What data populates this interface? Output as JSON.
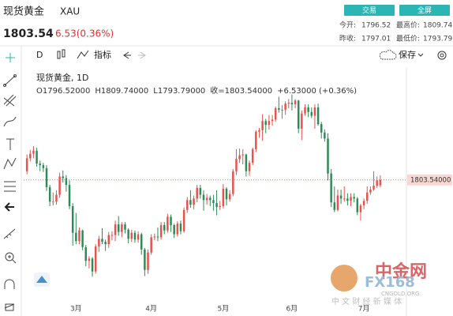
{
  "header": {
    "title": "现货黄金",
    "symbol": "XAU",
    "price": 1803.54,
    "change": "6.53(0.36%)",
    "buttons": [
      "交易",
      "全屏"
    ],
    "stats": [
      {
        "label": "今开:",
        "value": 1796.52
      },
      {
        "label": "最高价:",
        "value": 1809.74
      },
      {
        "label": "昨收:",
        "value": 1797.01
      },
      {
        "label": "最低价:",
        "value": 1793.79
      }
    ]
  },
  "toolbar": {
    "interval": "D",
    "indicators": "指标",
    "save": "保存"
  },
  "watermark": {
    "brand": "中金网",
    "logo": "FX168",
    "site": "CNGOLD.ORG",
    "slogan": "中 文 财 经 新 媒 体"
  },
  "chart_data": {
    "type": "candlestick",
    "legend_title": "现货黄金, 1D",
    "legend_values": [
      "O1796.52000",
      "H1809.74000",
      "L1793.79000",
      "收=1803.54000",
      "+6.53000 (+0.36%)"
    ],
    "up_color": "#e5534b",
    "down_color": "#2e8b57",
    "ylim": [
      1640,
      1952
    ],
    "price_line": {
      "value": 1803.54,
      "label": "1803.54000"
    },
    "xlim": [
      -1,
      116
    ],
    "xticks": [
      {
        "value": 15,
        "label": "3月"
      },
      {
        "value": 38,
        "label": "4月"
      },
      {
        "value": 60,
        "label": "5月"
      },
      {
        "value": 81,
        "label": "6月"
      },
      {
        "value": 103,
        "label": "7月"
      }
    ],
    "candles": [
      [
        1815,
        1837,
        1811,
        1832
      ],
      [
        1832,
        1843,
        1828,
        1838
      ],
      [
        1838,
        1848,
        1832,
        1842
      ],
      [
        1842,
        1846,
        1821,
        1825
      ],
      [
        1825,
        1829,
        1815,
        1823
      ],
      [
        1823,
        1826,
        1814,
        1819
      ],
      [
        1819,
        1823,
        1789,
        1794
      ],
      [
        1794,
        1797,
        1769,
        1775
      ],
      [
        1775,
        1787,
        1770,
        1775
      ],
      [
        1775,
        1790,
        1771,
        1784
      ],
      [
        1784,
        1813,
        1780,
        1808
      ],
      [
        1808,
        1816,
        1800,
        1806
      ],
      [
        1806,
        1810,
        1788,
        1797
      ],
      [
        1797,
        1803,
        1765,
        1769
      ],
      [
        1769,
        1773,
        1717,
        1734
      ],
      [
        1734,
        1760,
        1719,
        1723
      ],
      [
        1723,
        1741,
        1719,
        1737
      ],
      [
        1737,
        1738,
        1711,
        1715
      ],
      [
        1715,
        1718,
        1690,
        1697
      ],
      [
        1697,
        1703,
        1687,
        1700
      ],
      [
        1700,
        1702,
        1676,
        1683
      ],
      [
        1683,
        1719,
        1680,
        1716
      ],
      [
        1716,
        1730,
        1709,
        1726
      ],
      [
        1726,
        1740,
        1719,
        1722
      ],
      [
        1722,
        1725,
        1710,
        1719
      ],
      [
        1719,
        1735,
        1714,
        1731
      ],
      [
        1731,
        1736,
        1724,
        1731
      ],
      [
        1731,
        1750,
        1723,
        1745
      ],
      [
        1745,
        1756,
        1730,
        1735
      ],
      [
        1735,
        1748,
        1728,
        1745
      ],
      [
        1745,
        1748,
        1733,
        1738
      ],
      [
        1738,
        1740,
        1720,
        1726
      ],
      [
        1726,
        1738,
        1722,
        1734
      ],
      [
        1734,
        1737,
        1721,
        1725
      ],
      [
        1725,
        1736,
        1721,
        1732
      ],
      [
        1732,
        1734,
        1705,
        1712
      ],
      [
        1712,
        1714,
        1677,
        1685
      ],
      [
        1685,
        1712,
        1680,
        1708
      ],
      [
        1708,
        1732,
        1705,
        1728
      ],
      [
        1728,
        1733,
        1724,
        1729
      ],
      [
        1729,
        1741,
        1723,
        1728
      ],
      [
        1728,
        1748,
        1725,
        1744
      ],
      [
        1744,
        1748,
        1732,
        1737
      ],
      [
        1737,
        1759,
        1734,
        1755
      ],
      [
        1755,
        1758,
        1735,
        1744
      ],
      [
        1744,
        1746,
        1727,
        1732
      ],
      [
        1732,
        1749,
        1729,
        1746
      ],
      [
        1746,
        1750,
        1732,
        1736
      ],
      [
        1736,
        1767,
        1734,
        1764
      ],
      [
        1764,
        1781,
        1760,
        1777
      ],
      [
        1777,
        1790,
        1767,
        1771
      ],
      [
        1771,
        1783,
        1765,
        1779
      ],
      [
        1779,
        1797,
        1774,
        1793
      ],
      [
        1793,
        1797,
        1779,
        1784
      ],
      [
        1784,
        1790,
        1763,
        1777
      ],
      [
        1777,
        1785,
        1771,
        1780
      ],
      [
        1780,
        1783,
        1769,
        1777
      ],
      [
        1777,
        1784,
        1763,
        1773
      ],
      [
        1773,
        1790,
        1757,
        1768
      ],
      [
        1768,
        1776,
        1764,
        1769
      ],
      [
        1769,
        1798,
        1766,
        1792
      ],
      [
        1792,
        1794,
        1770,
        1778
      ],
      [
        1778,
        1790,
        1775,
        1785
      ],
      [
        1785,
        1818,
        1782,
        1815
      ],
      [
        1815,
        1844,
        1810,
        1831
      ],
      [
        1831,
        1845,
        1826,
        1836
      ],
      [
        1836,
        1844,
        1824,
        1837
      ],
      [
        1837,
        1838,
        1808,
        1815
      ],
      [
        1815,
        1829,
        1809,
        1826
      ],
      [
        1826,
        1846,
        1823,
        1844
      ],
      [
        1844,
        1869,
        1840,
        1867
      ],
      [
        1867,
        1872,
        1859,
        1869
      ],
      [
        1869,
        1890,
        1855,
        1881
      ],
      [
        1881,
        1884,
        1865,
        1876
      ],
      [
        1876,
        1889,
        1870,
        1881
      ],
      [
        1881,
        1889,
        1875,
        1883
      ],
      [
        1883,
        1900,
        1880,
        1898
      ],
      [
        1898,
        1913,
        1892,
        1896
      ],
      [
        1896,
        1902,
        1884,
        1896
      ],
      [
        1896,
        1907,
        1889,
        1904
      ],
      [
        1904,
        1910,
        1898,
        1905
      ],
      [
        1905,
        1916,
        1895,
        1903
      ],
      [
        1903,
        1910,
        1898,
        1908
      ],
      [
        1908,
        1909,
        1865,
        1871
      ],
      [
        1871,
        1895,
        1856,
        1891
      ],
      [
        1891,
        1903,
        1888,
        1899
      ],
      [
        1899,
        1903,
        1886,
        1893
      ],
      [
        1893,
        1899,
        1885,
        1888
      ],
      [
        1888,
        1903,
        1871,
        1899
      ],
      [
        1899,
        1904,
        1875,
        1877
      ],
      [
        1877,
        1880,
        1858,
        1866
      ],
      [
        1866,
        1870,
        1854,
        1858
      ],
      [
        1858,
        1865,
        1803,
        1812
      ],
      [
        1812,
        1818,
        1768,
        1774
      ],
      [
        1774,
        1795,
        1761,
        1764
      ],
      [
        1764,
        1791,
        1762,
        1783
      ],
      [
        1783,
        1791,
        1772,
        1779
      ],
      [
        1779,
        1795,
        1775,
        1779
      ],
      [
        1779,
        1786,
        1770,
        1776
      ],
      [
        1776,
        1786,
        1769,
        1781
      ],
      [
        1781,
        1786,
        1774,
        1779
      ],
      [
        1779,
        1781,
        1757,
        1761
      ],
      [
        1761,
        1772,
        1750,
        1770
      ],
      [
        1770,
        1779,
        1765,
        1776
      ],
      [
        1776,
        1795,
        1772,
        1787
      ],
      [
        1787,
        1795,
        1784,
        1791
      ],
      [
        1791,
        1815,
        1789,
        1796
      ],
      [
        1796,
        1808,
        1793,
        1803
      ],
      [
        1796.52,
        1809.74,
        1793.79,
        1803.54
      ]
    ]
  }
}
